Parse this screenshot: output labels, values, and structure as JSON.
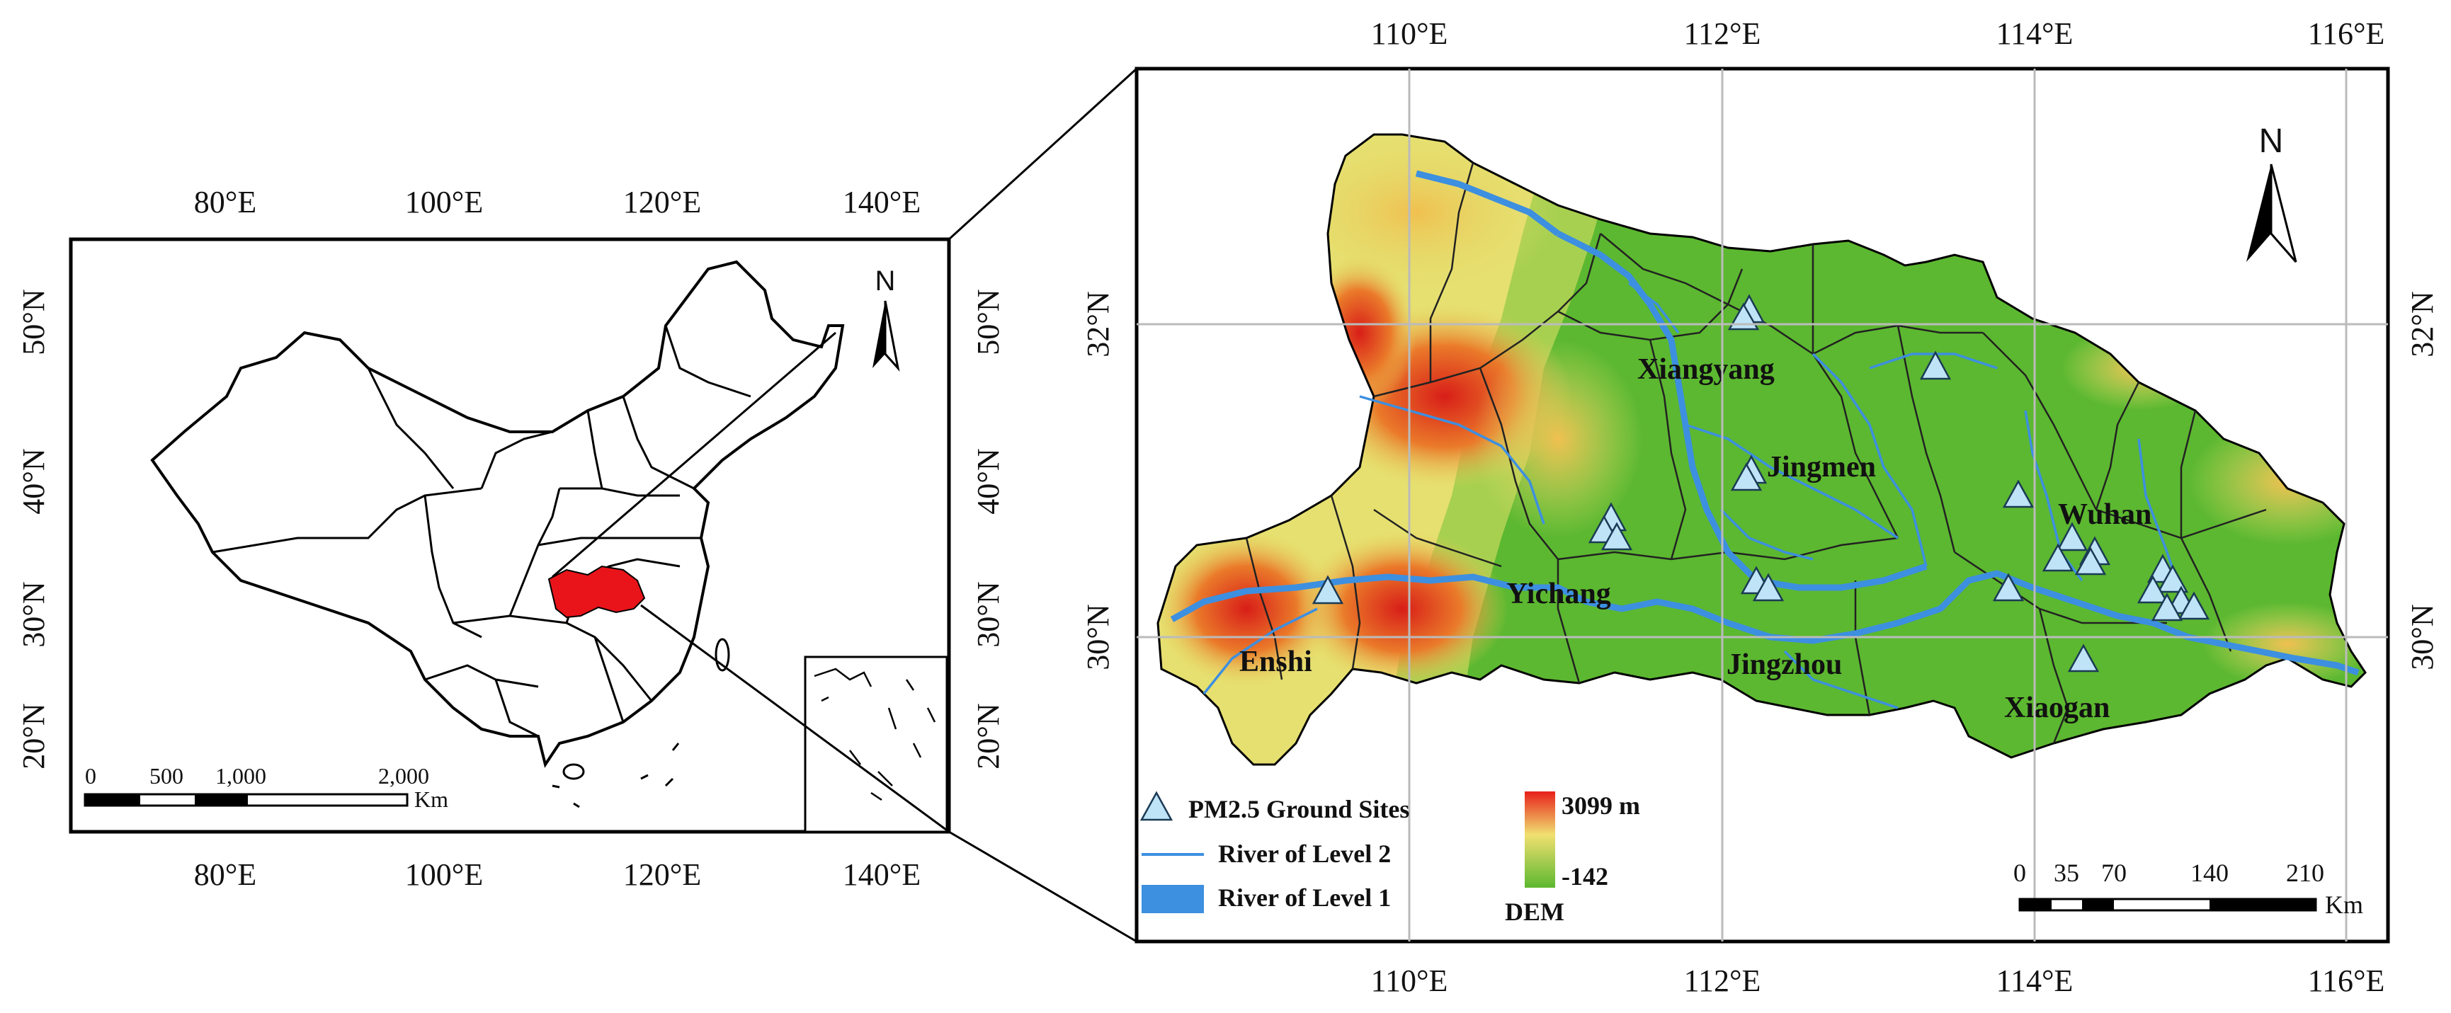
{
  "china_map": {
    "top_ticks": [
      "80°E",
      "100°E",
      "120°E",
      "140°E"
    ],
    "bottom_ticks": [
      "80°E",
      "100°E",
      "120°E",
      "140°E"
    ],
    "left_ticks": [
      "50°N",
      "40°N",
      "30°N",
      "20°N"
    ],
    "right_ticks": [
      "50°N",
      "40°N",
      "30°N",
      "20°N"
    ],
    "north_label": "N",
    "scale_labels": [
      "0",
      "500",
      "1,000",
      "2,000"
    ],
    "scale_unit": "Km",
    "highlight_color": "#e8141a"
  },
  "hubei_map": {
    "top_ticks": [
      "110°E",
      "112°E",
      "114°E",
      "116°E"
    ],
    "bottom_ticks": [
      "110°E",
      "112°E",
      "114°E",
      "116°E"
    ],
    "left_ticks": [
      "32°N",
      "30°N"
    ],
    "right_ticks": [
      "32°N",
      "30°N"
    ],
    "north_label": "N",
    "cities": [
      "Xiangyang",
      "Jingmen",
      "Wuhan",
      "Yichang",
      "Enshi",
      "Jingzhou",
      "Xiaogan"
    ],
    "scale_labels": [
      "0",
      "35",
      "70",
      "140",
      "210"
    ],
    "scale_unit": "Km",
    "legend": {
      "sites": "PM2.5 Ground Sites",
      "river2": "River of Level 2",
      "river1": "River of Level 1",
      "dem_max": "3099 m",
      "dem_min": "-142",
      "dem_title": "DEM"
    },
    "colors": {
      "dem_high": "#e8201a",
      "dem_mid": "#f0e070",
      "dem_low": "#5cb830",
      "river": "#3d8fe0",
      "site": "#bfe4f7"
    }
  }
}
